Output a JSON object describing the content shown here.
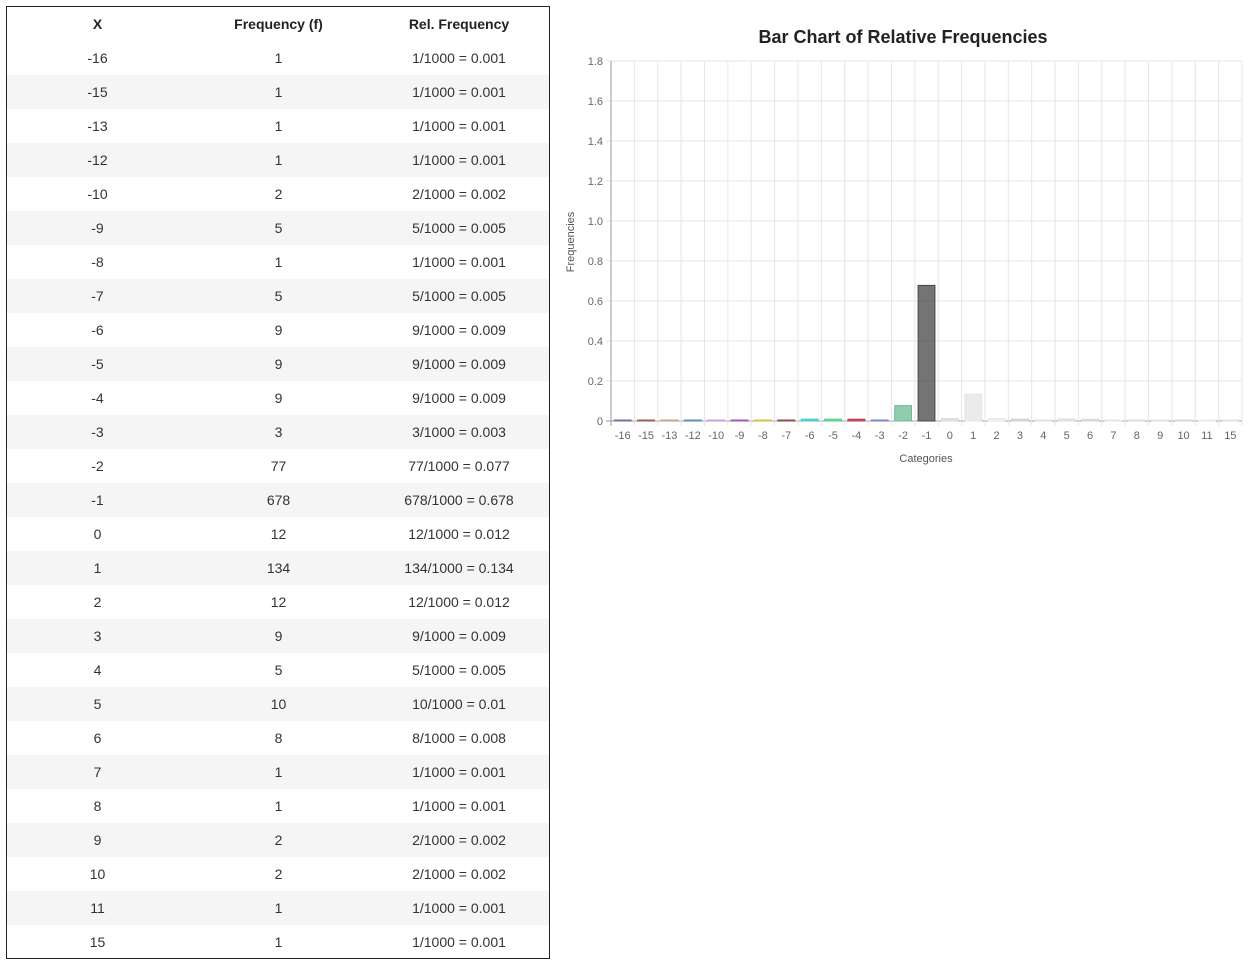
{
  "table": {
    "headers": [
      "X",
      "Frequency (f)",
      "Rel. Frequency"
    ],
    "rows": [
      [
        "-16",
        "1",
        "1/1000 = 0.001"
      ],
      [
        "-15",
        "1",
        "1/1000 = 0.001"
      ],
      [
        "-13",
        "1",
        "1/1000 = 0.001"
      ],
      [
        "-12",
        "1",
        "1/1000 = 0.001"
      ],
      [
        "-10",
        "2",
        "2/1000 = 0.002"
      ],
      [
        "-9",
        "5",
        "5/1000 = 0.005"
      ],
      [
        "-8",
        "1",
        "1/1000 = 0.001"
      ],
      [
        "-7",
        "5",
        "5/1000 = 0.005"
      ],
      [
        "-6",
        "9",
        "9/1000 = 0.009"
      ],
      [
        "-5",
        "9",
        "9/1000 = 0.009"
      ],
      [
        "-4",
        "9",
        "9/1000 = 0.009"
      ],
      [
        "-3",
        "3",
        "3/1000 = 0.003"
      ],
      [
        "-2",
        "77",
        "77/1000 = 0.077"
      ],
      [
        "-1",
        "678",
        "678/1000 = 0.678"
      ],
      [
        "0",
        "12",
        "12/1000 = 0.012"
      ],
      [
        "1",
        "134",
        "134/1000 = 0.134"
      ],
      [
        "2",
        "12",
        "12/1000 = 0.012"
      ],
      [
        "3",
        "9",
        "9/1000 = 0.009"
      ],
      [
        "4",
        "5",
        "5/1000 = 0.005"
      ],
      [
        "5",
        "10",
        "10/1000 = 0.01"
      ],
      [
        "6",
        "8",
        "8/1000 = 0.008"
      ],
      [
        "7",
        "1",
        "1/1000 = 0.001"
      ],
      [
        "8",
        "1",
        "1/1000 = 0.001"
      ],
      [
        "9",
        "2",
        "2/1000 = 0.002"
      ],
      [
        "10",
        "2",
        "2/1000 = 0.002"
      ],
      [
        "11",
        "1",
        "1/1000 = 0.001"
      ],
      [
        "15",
        "1",
        "1/1000 = 0.001"
      ]
    ]
  },
  "chart_data": {
    "type": "bar",
    "title": "Bar Chart of Relative Frequencies",
    "xlabel": "Categories",
    "ylabel": "Frequencies",
    "categories": [
      "-16",
      "-15",
      "-13",
      "-12",
      "-10",
      "-9",
      "-8",
      "-7",
      "-6",
      "-5",
      "-4",
      "-3",
      "-2",
      "-1",
      "0",
      "1",
      "2",
      "3",
      "4",
      "5",
      "6",
      "7",
      "8",
      "9",
      "10",
      "11",
      "15"
    ],
    "values": [
      0.001,
      0.001,
      0.001,
      0.001,
      0.002,
      0.005,
      0.001,
      0.005,
      0.009,
      0.009,
      0.009,
      0.003,
      0.077,
      0.678,
      0.012,
      0.134,
      0.012,
      0.009,
      0.005,
      0.01,
      0.008,
      0.001,
      0.001,
      0.002,
      0.002,
      0.001,
      0.001
    ],
    "colors": [
      "#7a6f9b",
      "#a05a5a",
      "#c4a484",
      "#5f8fb3",
      "#c9a0dc",
      "#a455b5",
      "#d4c24a",
      "#8b4e4e",
      "#3cc9c0",
      "#4ccf82",
      "#b83250",
      "#8a7fc9",
      "#6db996",
      "#464646",
      "#d9d9d9",
      "#e4e4e4",
      "#e8e8e8",
      "#d0d0d0",
      "#e0e0e0",
      "#dddddd",
      "#d5d5d5",
      "#e6e6e6",
      "#dcdcdc",
      "#e2e2e2",
      "#d8d8d8",
      "#e9e9e9",
      "#e1e1e1"
    ],
    "ylim": [
      0,
      1.8
    ],
    "yticks": [
      0,
      0.2,
      0.4,
      0.6,
      0.8,
      1.0,
      1.2,
      1.4,
      1.6,
      1.8
    ],
    "ytick_labels": [
      "0",
      "0.2",
      "0.4",
      "0.6",
      "0.8",
      "1.0",
      "1.2",
      "1.4",
      "1.6",
      "1.8"
    ],
    "grid": true,
    "legend": "none"
  }
}
